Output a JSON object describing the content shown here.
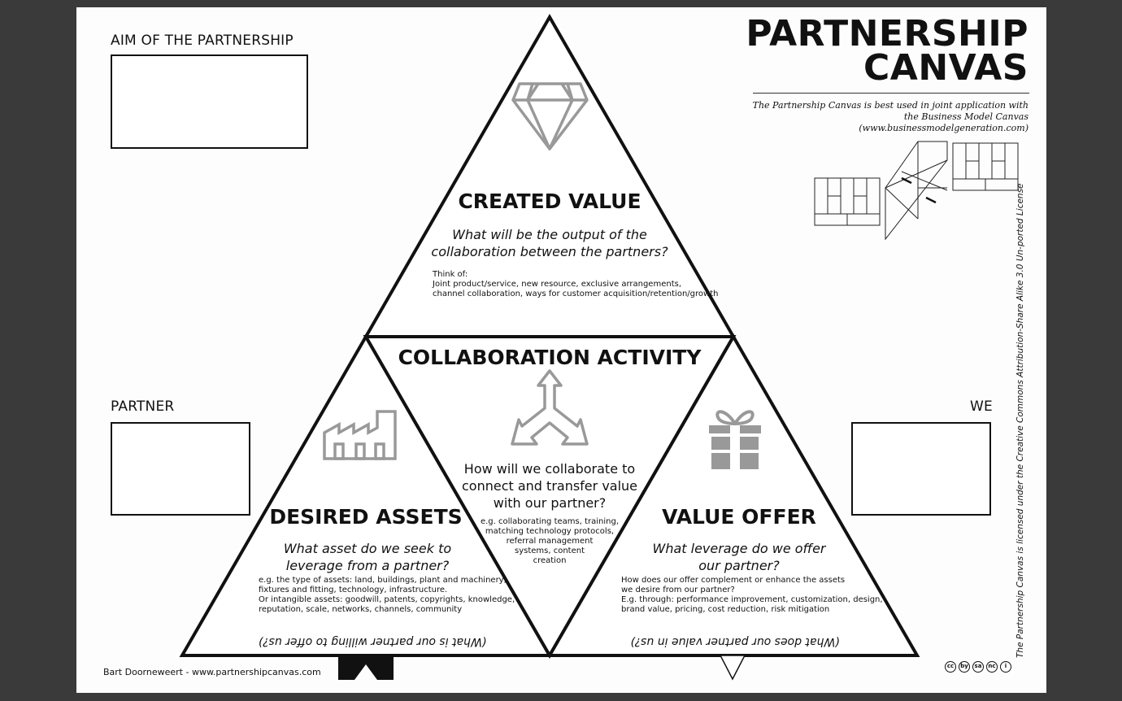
{
  "title": {
    "line1": "PARTNERSHIP",
    "line2": "CANVAS"
  },
  "subnote": "The Partnership Canvas is best used in joint application with the Business Model Canvas (www.businessmodelgeneration.com)",
  "labels": {
    "aim": "AIM OF THE PARTNERSHIP",
    "partner": "PARTNER",
    "we": "WE"
  },
  "created_value": {
    "heading": "CREATED VALUE",
    "question": "What will be the output of the collaboration between the partners?",
    "think_title": "Think of:",
    "think_line1": "Joint product/service, new resource, exclusive arrangements,",
    "think_line2": "channel collaboration, ways for customer acquisition/retention/growth",
    "icon": "diamond-icon"
  },
  "collaboration": {
    "heading": "COLLABORATION ACTIVITY",
    "question": "How will we collaborate to connect and transfer value with our partner?",
    "examples_line1": "e.g. collaborating teams, training,",
    "examples_line2": "matching technology protocols,",
    "examples_line3": "referral management",
    "examples_line4": "systems, content",
    "examples_line5": "creation",
    "icon": "three-way-arrow-icon"
  },
  "desired_assets": {
    "heading": "DESIRED ASSETS",
    "question": "What asset do we seek to leverage from a partner?",
    "line1": "e.g. the type of assets: land, buildings, plant and machinery,",
    "line2": "fixtures and fitting, technology, infrastructure.",
    "line3": "Or intangible assets: goodwill, patents, copyrights, knowledge,",
    "line4": "reputation, scale, networks, channels, community",
    "flipped": "(What is our partner willing to offer us?)",
    "icon": "factory-icon"
  },
  "value_offer": {
    "heading": "VALUE OFFER",
    "question": "What leverage do we offer our partner?",
    "line1": "How does our offer complement or enhance the assets",
    "line2": "we desire from our partner?",
    "line3": "E.g. through: performance improvement, customization, design,",
    "line4": "brand value, pricing, cost reduction, risk mitigation",
    "flipped": "(What does our partner value in us?)",
    "icon": "gift-icon"
  },
  "footer": "Bart Doorneweert - www.partnershipcanvas.com",
  "license": "The Partnership Canvas is licensed under the Creative Commons Attribution-Share Alike 3.0 Un-ported License",
  "cc_icons": [
    "cc",
    "by",
    "sa",
    "nc",
    "i"
  ]
}
